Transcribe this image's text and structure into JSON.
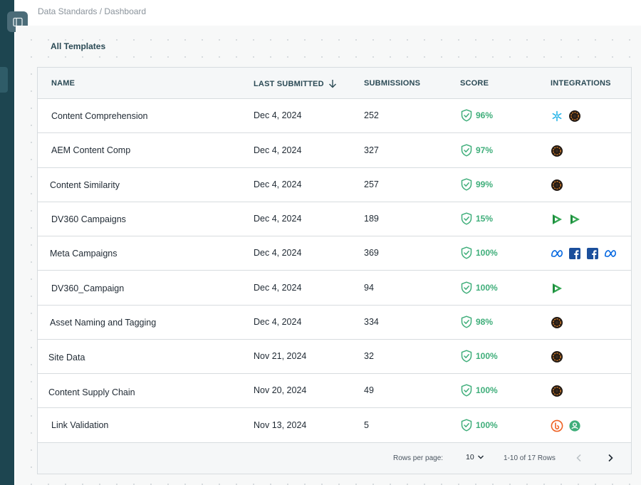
{
  "breadcrumb": "Data Standards / Dashboard",
  "section_title": "All Templates",
  "columns": {
    "name": "NAME",
    "last_submitted": "LAST SUBMITTED",
    "submissions": "SUBMISSIONS",
    "score": "SCORE",
    "integrations": "INTEGRATIONS"
  },
  "sort_icon": "arrow-down-icon",
  "rows": [
    {
      "name": "Content Comprehension",
      "date": "Dec 4, 2024",
      "submissions": "252",
      "score": "96%",
      "integrations": [
        "snowflake-icon",
        "dark-circle-icon"
      ]
    },
    {
      "name": "AEM Content Comp",
      "date": "Dec 4, 2024",
      "submissions": "327",
      "score": "97%",
      "integrations": [
        "dark-circle-icon"
      ]
    },
    {
      "name": "Content Similarity",
      "date": "Dec 4, 2024",
      "submissions": "257",
      "score": "99%",
      "integrations": [
        "dark-circle-icon"
      ]
    },
    {
      "name": "DV360 Campaigns",
      "date": "Dec 4, 2024",
      "submissions": "189",
      "score": "15%",
      "integrations": [
        "dv360-icon",
        "dv360-icon"
      ]
    },
    {
      "name": "Meta Campaigns",
      "date": "Dec 4, 2024",
      "submissions": "369",
      "score": "100%",
      "integrations": [
        "meta-icon",
        "facebook-icon",
        "facebook-icon",
        "meta-icon"
      ]
    },
    {
      "name": "DV360_Campaign",
      "date": "Dec 4, 2024",
      "submissions": "94",
      "score": "100%",
      "integrations": [
        "dv360-icon"
      ]
    },
    {
      "name": "Asset Naming and Tagging",
      "date": "Dec 4, 2024",
      "submissions": "334",
      "score": "98%",
      "integrations": [
        "dark-circle-icon"
      ]
    },
    {
      "name": "Site Data",
      "date": "Nov 21, 2024",
      "submissions": "32",
      "score": "100%",
      "integrations": [
        "dark-circle-icon"
      ]
    },
    {
      "name": "Content Supply Chain",
      "date": "Nov 20, 2024",
      "submissions": "49",
      "score": "100%",
      "integrations": [
        "dark-circle-icon"
      ]
    },
    {
      "name": "Link Validation",
      "date": "Nov 13, 2024",
      "submissions": "5",
      "score": "100%",
      "integrations": [
        "bitly-icon",
        "green-circle-icon"
      ]
    }
  ],
  "pagination": {
    "rows_per_page_label": "Rows per page:",
    "rows_per_page_value": "10",
    "range_text": "1-10 of 17 Rows"
  },
  "colors": {
    "rail": "#1d4550",
    "score_green": "#3fae7a",
    "header_text": "#2b4a55"
  }
}
